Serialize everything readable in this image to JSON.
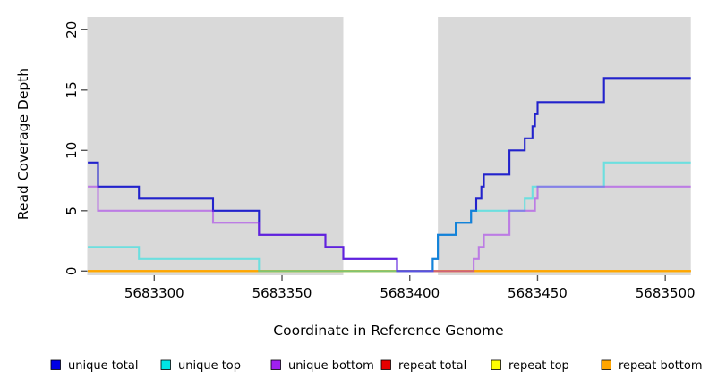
{
  "chart_data": {
    "type": "line",
    "subtype": "step-after",
    "title": "",
    "xlabel": "Coordinate in Reference Genome",
    "ylabel": "Read Coverage Depth",
    "xlim": [
      5683274,
      5683510
    ],
    "ylim": [
      0,
      21
    ],
    "x_ticks": [
      5683300,
      5683350,
      5683400,
      5683450,
      5683500
    ],
    "y_ticks": [
      0,
      5,
      10,
      15,
      20
    ],
    "grid": false,
    "plot_background": "#d9d9d9",
    "highlight_region": {
      "x0": 5683374,
      "x1": 5683411,
      "color": "#ffffff",
      "note": "white band over gray plot background"
    },
    "series": [
      {
        "name": "repeat total",
        "color": "#e60000",
        "opacity": 1,
        "points": [
          [
            5683274,
            0
          ],
          [
            5683510,
            0
          ]
        ]
      },
      {
        "name": "repeat top",
        "color": "#ffff00",
        "opacity": 1,
        "points": [
          [
            5683274,
            0
          ],
          [
            5683510,
            0
          ]
        ]
      },
      {
        "name": "repeat bottom",
        "color": "#ffa500",
        "opacity": 1,
        "points": [
          [
            5683274,
            0
          ],
          [
            5683510,
            0
          ]
        ]
      },
      {
        "name": "unique total",
        "color": "#2222cc",
        "opacity": 1,
        "points": [
          [
            5683274,
            9
          ],
          [
            5683278,
            7
          ],
          [
            5683294,
            6
          ],
          [
            5683323,
            5
          ],
          [
            5683341,
            3
          ],
          [
            5683367,
            2
          ],
          [
            5683374,
            1
          ],
          [
            5683395,
            0
          ],
          [
            5683409,
            1
          ],
          [
            5683411,
            3
          ],
          [
            5683418,
            4
          ],
          [
            5683424,
            5
          ],
          [
            5683426,
            6
          ],
          [
            5683428,
            7
          ],
          [
            5683429,
            8
          ],
          [
            5683439,
            10
          ],
          [
            5683445,
            11
          ],
          [
            5683448,
            12
          ],
          [
            5683449,
            13
          ],
          [
            5683450,
            14
          ],
          [
            5683476,
            16
          ],
          [
            5683510,
            16
          ]
        ]
      },
      {
        "name": "unique top",
        "color": "#00e5e5",
        "opacity": 0.5,
        "points": [
          [
            5683274,
            2
          ],
          [
            5683294,
            1
          ],
          [
            5683341,
            0
          ],
          [
            5683409,
            1
          ],
          [
            5683411,
            3
          ],
          [
            5683418,
            4
          ],
          [
            5683424,
            5
          ],
          [
            5683445,
            6
          ],
          [
            5683448,
            7
          ],
          [
            5683476,
            9
          ],
          [
            5683510,
            9
          ]
        ]
      },
      {
        "name": "unique bottom",
        "color": "#a020f0",
        "opacity": 0.5,
        "points": [
          [
            5683274,
            7
          ],
          [
            5683278,
            5
          ],
          [
            5683323,
            4
          ],
          [
            5683341,
            3
          ],
          [
            5683367,
            2
          ],
          [
            5683374,
            1
          ],
          [
            5683395,
            0
          ],
          [
            5683425,
            1
          ],
          [
            5683427,
            2
          ],
          [
            5683429,
            3
          ],
          [
            5683439,
            5
          ],
          [
            5683449,
            6
          ],
          [
            5683450,
            7
          ],
          [
            5683510,
            7
          ]
        ]
      }
    ],
    "legend": {
      "position": "bottom",
      "entries": [
        {
          "label": "unique total",
          "color": "#0000e5"
        },
        {
          "label": "unique top",
          "color": "#00e5e5"
        },
        {
          "label": "unique bottom",
          "color": "#a020f0"
        },
        {
          "label": "repeat total",
          "color": "#e60000"
        },
        {
          "label": "repeat top",
          "color": "#ffff00"
        },
        {
          "label": "repeat bottom",
          "color": "#ffa500"
        }
      ]
    }
  }
}
